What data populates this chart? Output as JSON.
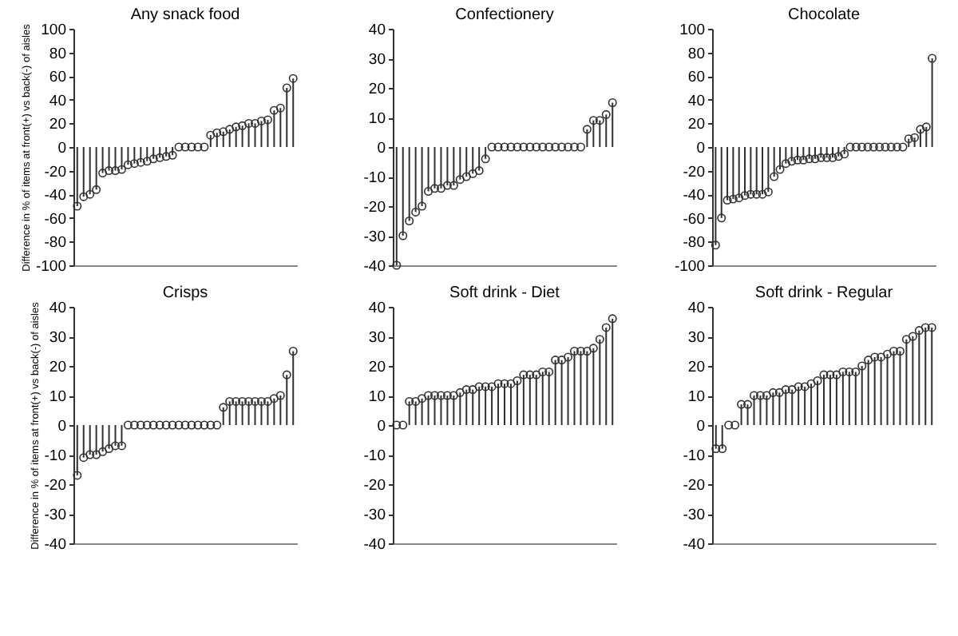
{
  "chart_data": [
    {
      "type": "lollipop",
      "title": "Any snack food",
      "ylabel": "Difference in % of items at front(+) vs back(-) of aisles",
      "tick_labels": "y",
      "marker": "circle",
      "color": "#303030",
      "ylim": [
        -100,
        100
      ],
      "yticks": [
        -100,
        -80,
        -60,
        -40,
        -20,
        0,
        20,
        40,
        60,
        80,
        100
      ],
      "categories": [
        null,
        null,
        null,
        null,
        null,
        null,
        null,
        null,
        null,
        null,
        null,
        null,
        null,
        null,
        null,
        null,
        null,
        null,
        null,
        null,
        null,
        null,
        null,
        null,
        null,
        null,
        null,
        null,
        null,
        null,
        null,
        null,
        null,
        null,
        null
      ],
      "values": [
        -50,
        -42,
        -40,
        -36,
        -22,
        -20,
        -20,
        -19,
        -15,
        -14,
        -13,
        -12,
        -10,
        -9,
        -8,
        -7,
        0,
        0,
        0,
        0,
        0,
        10,
        12,
        13,
        15,
        17,
        18,
        20,
        20,
        22,
        23,
        31,
        33,
        50,
        58
      ]
    },
    {
      "type": "lollipop",
      "title": "Confectionery",
      "tick_labels": "y",
      "marker": "circle",
      "color": "#303030",
      "ylim": [
        -40,
        40
      ],
      "yticks": [
        -40,
        -30,
        -20,
        -10,
        0,
        10,
        20,
        30,
        40
      ],
      "categories": [
        null,
        null,
        null,
        null,
        null,
        null,
        null,
        null,
        null,
        null,
        null,
        null,
        null,
        null,
        null,
        null,
        null,
        null,
        null,
        null,
        null,
        null,
        null,
        null,
        null,
        null,
        null,
        null,
        null,
        null,
        null,
        null,
        null,
        null,
        null
      ],
      "values": [
        -40,
        -30,
        -25,
        -22,
        -20,
        -15,
        -14,
        -14,
        -13,
        -13,
        -11,
        -10,
        -9,
        -8,
        -4,
        0,
        0,
        0,
        0,
        0,
        0,
        0,
        0,
        0,
        0,
        0,
        0,
        0,
        0,
        0,
        6,
        9,
        9,
        11,
        15
      ]
    },
    {
      "type": "lollipop",
      "title": "Chocolate",
      "tick_labels": "y",
      "marker": "circle",
      "color": "#303030",
      "ylim": [
        -100,
        100
      ],
      "yticks": [
        -100,
        -80,
        -60,
        -40,
        -20,
        0,
        20,
        40,
        60,
        80,
        100
      ],
      "categories": [
        null,
        null,
        null,
        null,
        null,
        null,
        null,
        null,
        null,
        null,
        null,
        null,
        null,
        null,
        null,
        null,
        null,
        null,
        null,
        null,
        null,
        null,
        null,
        null,
        null,
        null,
        null,
        null,
        null,
        null,
        null,
        null,
        null,
        null,
        null,
        null,
        null,
        null
      ],
      "values": [
        -83,
        -60,
        -45,
        -44,
        -43,
        -41,
        -40,
        -40,
        -40,
        -38,
        -25,
        -19,
        -14,
        -12,
        -11,
        -11,
        -10,
        -10,
        -9,
        -9,
        -9,
        -8,
        -6,
        0,
        0,
        0,
        0,
        0,
        0,
        0,
        0,
        0,
        0,
        7,
        8,
        15,
        17,
        75
      ]
    },
    {
      "type": "lollipop",
      "title": "Crisps",
      "ylabel": "Difference in % of items at front(+) vs back(-) of aisles",
      "tick_labels": "y",
      "marker": "circle",
      "color": "#303030",
      "ylim": [
        -40,
        40
      ],
      "yticks": [
        -40,
        -30,
        -20,
        -10,
        0,
        10,
        20,
        30,
        40
      ],
      "categories": [
        null,
        null,
        null,
        null,
        null,
        null,
        null,
        null,
        null,
        null,
        null,
        null,
        null,
        null,
        null,
        null,
        null,
        null,
        null,
        null,
        null,
        null,
        null,
        null,
        null,
        null,
        null,
        null,
        null,
        null,
        null,
        null,
        null,
        null,
        null
      ],
      "values": [
        -17,
        -11,
        -10,
        -10,
        -9,
        -8,
        -7,
        -7,
        0,
        0,
        0,
        0,
        0,
        0,
        0,
        0,
        0,
        0,
        0,
        0,
        0,
        0,
        0,
        6,
        8,
        8,
        8,
        8,
        8,
        8,
        8,
        9,
        10,
        17,
        25
      ]
    },
    {
      "type": "lollipop",
      "title": "Soft drink - Diet",
      "tick_labels": "y",
      "marker": "circle",
      "color": "#303030",
      "ylim": [
        -40,
        40
      ],
      "yticks": [
        -40,
        -30,
        -20,
        -10,
        0,
        10,
        20,
        30,
        40
      ],
      "categories": [
        null,
        null,
        null,
        null,
        null,
        null,
        null,
        null,
        null,
        null,
        null,
        null,
        null,
        null,
        null,
        null,
        null,
        null,
        null,
        null,
        null,
        null,
        null,
        null,
        null,
        null,
        null,
        null,
        null,
        null,
        null,
        null,
        null,
        null,
        null
      ],
      "values": [
        0,
        0,
        8,
        8,
        9,
        10,
        10,
        10,
        10,
        10,
        11,
        12,
        12,
        13,
        13,
        13,
        14,
        14,
        14,
        15,
        17,
        17,
        17,
        18,
        18,
        22,
        22,
        23,
        25,
        25,
        25,
        26,
        29,
        33,
        36
      ]
    },
    {
      "type": "lollipop",
      "title": "Soft drink - Regular",
      "tick_labels": "y",
      "marker": "circle",
      "color": "#303030",
      "ylim": [
        -40,
        40
      ],
      "yticks": [
        -40,
        -30,
        -20,
        -10,
        0,
        10,
        20,
        30,
        40
      ],
      "categories": [
        null,
        null,
        null,
        null,
        null,
        null,
        null,
        null,
        null,
        null,
        null,
        null,
        null,
        null,
        null,
        null,
        null,
        null,
        null,
        null,
        null,
        null,
        null,
        null,
        null,
        null,
        null,
        null,
        null,
        null,
        null,
        null,
        null,
        null,
        null
      ],
      "values": [
        -8,
        -8,
        0,
        0,
        7,
        7,
        10,
        10,
        10,
        11,
        11,
        12,
        12,
        13,
        13,
        14,
        15,
        17,
        17,
        17,
        18,
        18,
        18,
        20,
        22,
        23,
        23,
        24,
        25,
        25,
        29,
        30,
        32,
        33,
        33
      ]
    }
  ]
}
